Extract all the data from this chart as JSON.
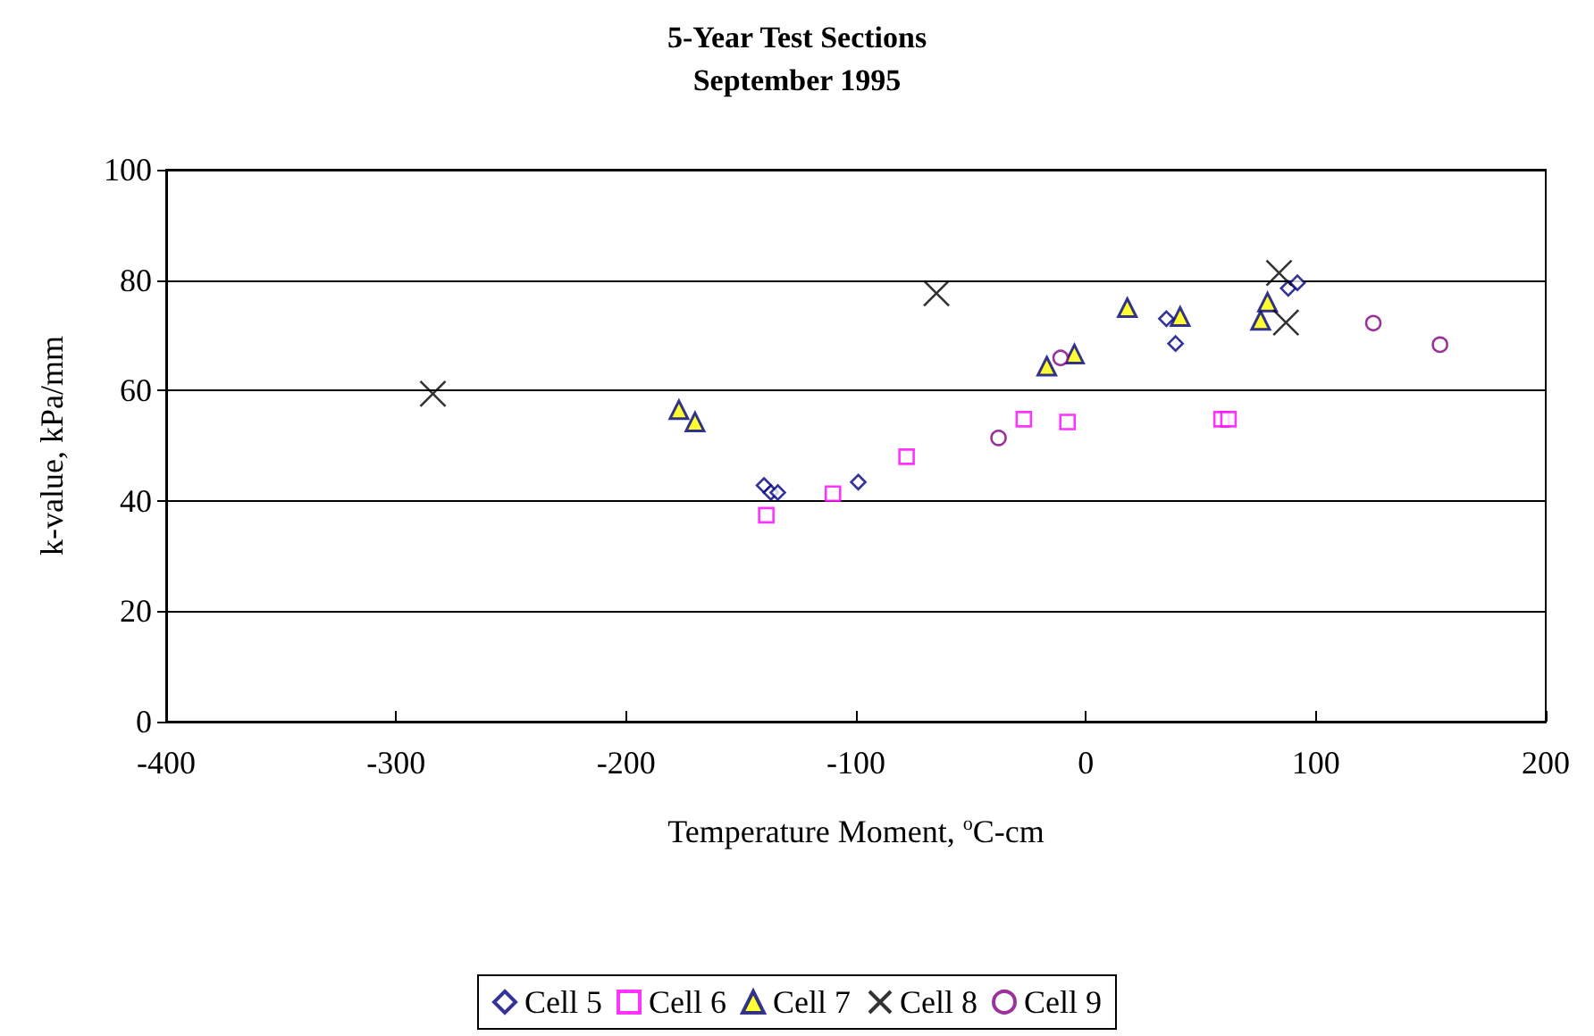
{
  "chart_data": {
    "type": "scatter",
    "title": "5-Year Test Sections\nSeptember 1995",
    "xlabel": "Temperature Moment, $^{o}$C-cm",
    "ylabel": "k-value, kPa/mm",
    "xlim": [
      -400,
      200
    ],
    "xticks": [
      -400,
      -300,
      -200,
      -100,
      0,
      100,
      200
    ],
    "ylim": [
      0,
      100
    ],
    "yticks": [
      0,
      20,
      40,
      60,
      80,
      100
    ],
    "grid": "y",
    "legend": "bottom",
    "series": [
      {
        "name": "Cell 5",
        "color": "#000080",
        "marker": "diamond",
        "x": [
          -140,
          -137,
          -134,
          -99,
          35,
          39,
          88,
          92
        ],
        "values": [
          42.8,
          41.5,
          41.5,
          43.4,
          73,
          68.5,
          78.5,
          79.5
        ]
      },
      {
        "name": "Cell 6",
        "color": "#ff00ff",
        "marker": "square",
        "x": [
          -139,
          -110,
          -78,
          -27,
          -8,
          59,
          62
        ],
        "values": [
          37.4,
          41.3,
          48,
          54.8,
          54.3,
          54.8,
          54.8
        ]
      },
      {
        "name": "Cell 7",
        "color": "#ffff00",
        "marker": "triangle",
        "x": [
          -177,
          -170,
          -17,
          -5,
          18,
          41,
          76,
          79
        ],
        "values": [
          56.5,
          54.3,
          64.4,
          66.6,
          75,
          73.4,
          72.7,
          76
        ]
      },
      {
        "name": "Cell 8",
        "color": "#000000",
        "marker": "cross",
        "x": [
          -284,
          -65,
          84,
          87
        ],
        "values": [
          59.4,
          77.6,
          81.3,
          72.3
        ]
      },
      {
        "name": "Cell 9",
        "color": "#800080",
        "marker": "circle",
        "x": [
          -38,
          -11,
          125,
          154
        ],
        "values": [
          51.4,
          65.9,
          72.2,
          68.3
        ]
      }
    ]
  }
}
